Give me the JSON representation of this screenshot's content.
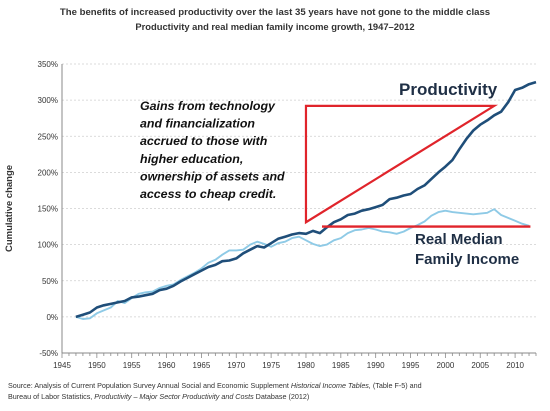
{
  "chart_data": {
    "type": "line",
    "title": "The benefits of increased productivity over the last 35 years have not gone to the middle class",
    "subtitle": "Productivity and real median family income growth, 1947–2012",
    "ylabel": "Cumulative change",
    "xlabel": "",
    "xlim": [
      1945,
      2013
    ],
    "ylim": [
      -50,
      350
    ],
    "grid": true,
    "x_tick_labels": [
      "1945",
      "1950",
      "1955",
      "1960",
      "1965",
      "1970",
      "1975",
      "1980",
      "1985",
      "1990",
      "1995",
      "2000",
      "2005",
      "2010"
    ],
    "y_tick_labels": [
      "-50%",
      "0%",
      "50%",
      "100%",
      "150%",
      "200%",
      "250%",
      "300%",
      "350%"
    ],
    "series": [
      {
        "name": "Productivity",
        "color": "#1f4e79",
        "points": [
          [
            1947,
            0
          ],
          [
            1948,
            3
          ],
          [
            1949,
            6
          ],
          [
            1950,
            13
          ],
          [
            1951,
            16
          ],
          [
            1952,
            18
          ],
          [
            1953,
            20
          ],
          [
            1954,
            22
          ],
          [
            1955,
            27
          ],
          [
            1956,
            28
          ],
          [
            1957,
            30
          ],
          [
            1958,
            32
          ],
          [
            1959,
            37
          ],
          [
            1960,
            39
          ],
          [
            1961,
            43
          ],
          [
            1962,
            49
          ],
          [
            1963,
            54
          ],
          [
            1964,
            59
          ],
          [
            1965,
            64
          ],
          [
            1966,
            69
          ],
          [
            1967,
            72
          ],
          [
            1968,
            77
          ],
          [
            1969,
            78
          ],
          [
            1970,
            81
          ],
          [
            1971,
            88
          ],
          [
            1972,
            93
          ],
          [
            1973,
            98
          ],
          [
            1974,
            96
          ],
          [
            1975,
            102
          ],
          [
            1976,
            108
          ],
          [
            1977,
            111
          ],
          [
            1978,
            114
          ],
          [
            1979,
            116
          ],
          [
            1980,
            115
          ],
          [
            1981,
            119
          ],
          [
            1982,
            116
          ],
          [
            1983,
            124
          ],
          [
            1984,
            131
          ],
          [
            1985,
            135
          ],
          [
            1986,
            141
          ],
          [
            1987,
            143
          ],
          [
            1988,
            147
          ],
          [
            1989,
            149
          ],
          [
            1990,
            152
          ],
          [
            1991,
            155
          ],
          [
            1992,
            163
          ],
          [
            1993,
            165
          ],
          [
            1994,
            168
          ],
          [
            1995,
            170
          ],
          [
            1996,
            177
          ],
          [
            1997,
            182
          ],
          [
            1998,
            191
          ],
          [
            1999,
            200
          ],
          [
            2000,
            208
          ],
          [
            2001,
            217
          ],
          [
            2002,
            232
          ],
          [
            2003,
            246
          ],
          [
            2004,
            258
          ],
          [
            2005,
            266
          ],
          [
            2006,
            272
          ],
          [
            2007,
            279
          ],
          [
            2008,
            284
          ],
          [
            2009,
            297
          ],
          [
            2010,
            314
          ],
          [
            2011,
            317
          ],
          [
            2012,
            322
          ],
          [
            2013,
            325
          ]
        ]
      },
      {
        "name": "Real Median Family Income",
        "color": "#8ecae6",
        "points": [
          [
            1947,
            0
          ],
          [
            1948,
            -3
          ],
          [
            1949,
            -2
          ],
          [
            1950,
            5
          ],
          [
            1951,
            9
          ],
          [
            1952,
            13
          ],
          [
            1953,
            22
          ],
          [
            1954,
            19
          ],
          [
            1955,
            26
          ],
          [
            1956,
            32
          ],
          [
            1957,
            34
          ],
          [
            1958,
            35
          ],
          [
            1959,
            40
          ],
          [
            1960,
            43
          ],
          [
            1961,
            45
          ],
          [
            1962,
            51
          ],
          [
            1963,
            56
          ],
          [
            1964,
            61
          ],
          [
            1965,
            67
          ],
          [
            1966,
            75
          ],
          [
            1967,
            79
          ],
          [
            1968,
            86
          ],
          [
            1969,
            92
          ],
          [
            1970,
            92
          ],
          [
            1971,
            93
          ],
          [
            1972,
            100
          ],
          [
            1973,
            104
          ],
          [
            1974,
            101
          ],
          [
            1975,
            97
          ],
          [
            1976,
            102
          ],
          [
            1977,
            104
          ],
          [
            1978,
            109
          ],
          [
            1979,
            111
          ],
          [
            1980,
            106
          ],
          [
            1981,
            101
          ],
          [
            1982,
            98
          ],
          [
            1983,
            100
          ],
          [
            1984,
            106
          ],
          [
            1985,
            109
          ],
          [
            1986,
            116
          ],
          [
            1987,
            120
          ],
          [
            1988,
            121
          ],
          [
            1989,
            123
          ],
          [
            1990,
            121
          ],
          [
            1991,
            118
          ],
          [
            1992,
            117
          ],
          [
            1993,
            115
          ],
          [
            1994,
            118
          ],
          [
            1995,
            123
          ],
          [
            1996,
            127
          ],
          [
            1997,
            132
          ],
          [
            1998,
            140
          ],
          [
            1999,
            145
          ],
          [
            2000,
            147
          ],
          [
            2001,
            145
          ],
          [
            2002,
            144
          ],
          [
            2003,
            143
          ],
          [
            2004,
            142
          ],
          [
            2005,
            143
          ],
          [
            2006,
            144
          ],
          [
            2007,
            149
          ],
          [
            2008,
            141
          ],
          [
            2009,
            137
          ],
          [
            2010,
            133
          ],
          [
            2011,
            129
          ],
          [
            2012,
            126
          ]
        ]
      }
    ],
    "annotations": {
      "productivity_label": "Productivity",
      "income_label_line1": "Real Median",
      "income_label_line2": "Family Income",
      "note_lines": [
        "Gains from technology",
        "and financialization",
        "accrued to those with",
        "higher education,",
        "ownership of assets and",
        "access to cheap credit."
      ],
      "highlight_color": "#e0242b"
    }
  },
  "source": {
    "line1_prefix": "Source:  Analysis of Current Population Survey Annual Social and Economic Supplement ",
    "line1_italic": "Historical Income Tables,",
    "line1_suffix": " (Table F-5) and",
    "line2_prefix": "Bureau of Labor Statistics, ",
    "line2_italic": "Productivity – Major Sector Productivity and Costs",
    "line2_suffix": " Database (2012)"
  }
}
